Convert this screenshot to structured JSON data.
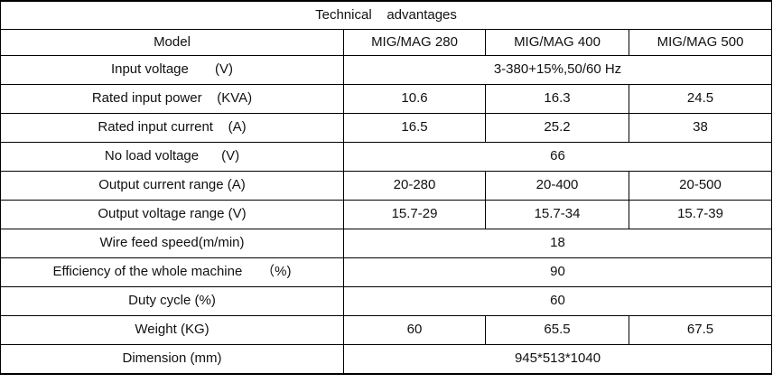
{
  "table": {
    "title": "Technical    advantages",
    "header": {
      "model_label": "Model",
      "columns": [
        "MIG/MAG 280",
        "MIG/MAG 400",
        "MIG/MAG 500"
      ]
    },
    "rows": [
      {
        "label": "Input voltage       (V)",
        "merged": "3-380+15%,50/60 Hz"
      },
      {
        "label": "Rated input power    (KVA)",
        "values": [
          "10.6",
          "16.3",
          "24.5"
        ]
      },
      {
        "label": "Rated input current    (A)",
        "values": [
          "16.5",
          "25.2",
          "38"
        ]
      },
      {
        "label": "No load voltage      (V)",
        "merged": "66"
      },
      {
        "label": "Output current range (A)",
        "values": [
          "20-280",
          "20-400",
          "20-500"
        ]
      },
      {
        "label": "Output voltage range (V)",
        "values": [
          "15.7-29",
          "15.7-34",
          "15.7-39"
        ]
      },
      {
        "label": "Wire feed speed(m/min)",
        "merged": "18"
      },
      {
        "label": "Efficiency of the whole machine     （%)",
        "merged": "90"
      },
      {
        "label": "Duty cycle (%)",
        "merged": "60"
      },
      {
        "label": "Weight (KG)",
        "values": [
          "60",
          "65.5",
          "67.5"
        ]
      },
      {
        "label": "Dimension (mm)",
        "merged": "945*513*1040"
      }
    ]
  }
}
